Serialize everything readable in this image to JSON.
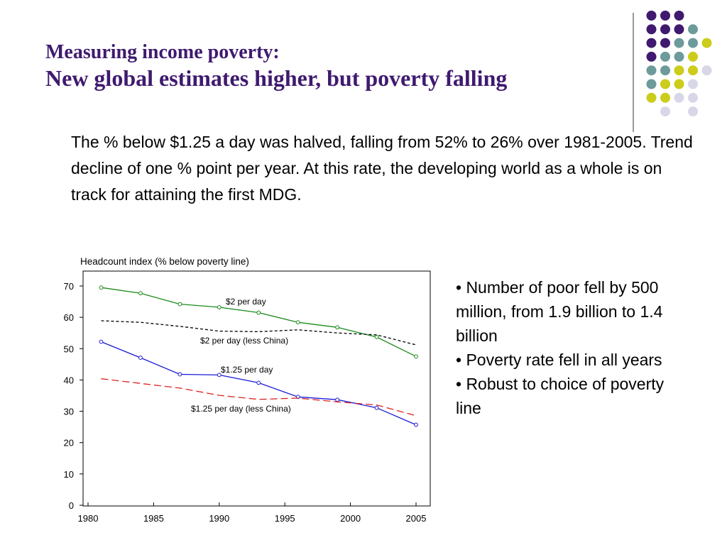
{
  "slide": {
    "title_line1": "Measuring income poverty:",
    "title_line2": "New global estimates higher, but poverty falling",
    "body_text": "The % below $1.25 a day was halved, falling from 52% to 26% over 1981-2005. Trend decline of one % point per year.  At this rate, the developing world as a whole is on track for attaining the first MDG.",
    "bullets": [
      "• Number of poor fell by 500 million, from 1.9 billion to 1.4 billion",
      "• Poverty rate fell in all years",
      "• Robust to choice of poverty line"
    ]
  },
  "decor": {
    "dot_colors": {
      "purple": "#3f1a6f",
      "teal": "#6d9a9a",
      "yellow": "#cccc1a",
      "lavender": "#d7d7e8"
    },
    "dot_rows": [
      [
        "",
        "purple",
        "purple",
        "purple",
        ""
      ],
      [
        "",
        "purple",
        "purple",
        "purple",
        "teal"
      ],
      [
        "",
        "purple",
        "purple",
        "teal",
        "teal",
        "yellow"
      ],
      [
        "",
        "purple",
        "teal",
        "teal",
        "yellow"
      ],
      [
        "",
        "teal",
        "teal",
        "yellow",
        "yellow",
        "lavender"
      ],
      [
        "",
        "teal",
        "yellow",
        "yellow",
        "lavender"
      ],
      [
        "",
        "yellow",
        "yellow",
        "lavender",
        "lavender"
      ],
      [
        "",
        "",
        "lavender",
        "",
        "lavender"
      ]
    ]
  },
  "chart_data": {
    "type": "line",
    "title": "Headcount index (% below poverty line)",
    "xlim": [
      1980,
      2006
    ],
    "ylim": [
      0,
      75
    ],
    "xticks": [
      1980,
      1985,
      1990,
      1995,
      2000,
      2005
    ],
    "yticks": [
      0,
      10,
      20,
      30,
      40,
      50,
      60,
      70
    ],
    "grid": false,
    "series": [
      {
        "name": "$2 per day",
        "color": "#1a8a1a",
        "dash": "",
        "markers": true,
        "x": [
          1981,
          1984,
          1987,
          1990,
          1993,
          1996,
          1999,
          2002,
          2005
        ],
        "y": [
          69.5,
          67.7,
          64.2,
          63.2,
          61.5,
          58.4,
          56.8,
          53.7,
          47.5
        ]
      },
      {
        "name": "$2 per day (less China)",
        "color": "#000000",
        "dash": "4,3",
        "markers": false,
        "x": [
          1981,
          1984,
          1987,
          1990,
          1993,
          1996,
          1999,
          2002,
          2005
        ],
        "y": [
          58.9,
          58.4,
          57.1,
          55.6,
          55.4,
          56.0,
          55.0,
          54.4,
          51.2
        ]
      },
      {
        "name": "$1.25 per day",
        "color": "#1a1ad6",
        "dash": "",
        "markers": true,
        "x": [
          1981,
          1984,
          1987,
          1990,
          1993,
          1996,
          1999,
          2002,
          2005
        ],
        "y": [
          52.2,
          47.1,
          41.8,
          41.6,
          39.1,
          34.6,
          33.7,
          31.1,
          25.7
        ]
      },
      {
        "name": "$1.25 per day (less China)",
        "color": "#dd2222",
        "dash": "10,5",
        "markers": false,
        "x": [
          1981,
          1984,
          1987,
          1990,
          1993,
          1996,
          1999,
          2002,
          2005
        ],
        "y": [
          40.4,
          38.9,
          37.4,
          35.1,
          33.8,
          34.2,
          33.0,
          32.0,
          28.6
        ]
      }
    ]
  }
}
